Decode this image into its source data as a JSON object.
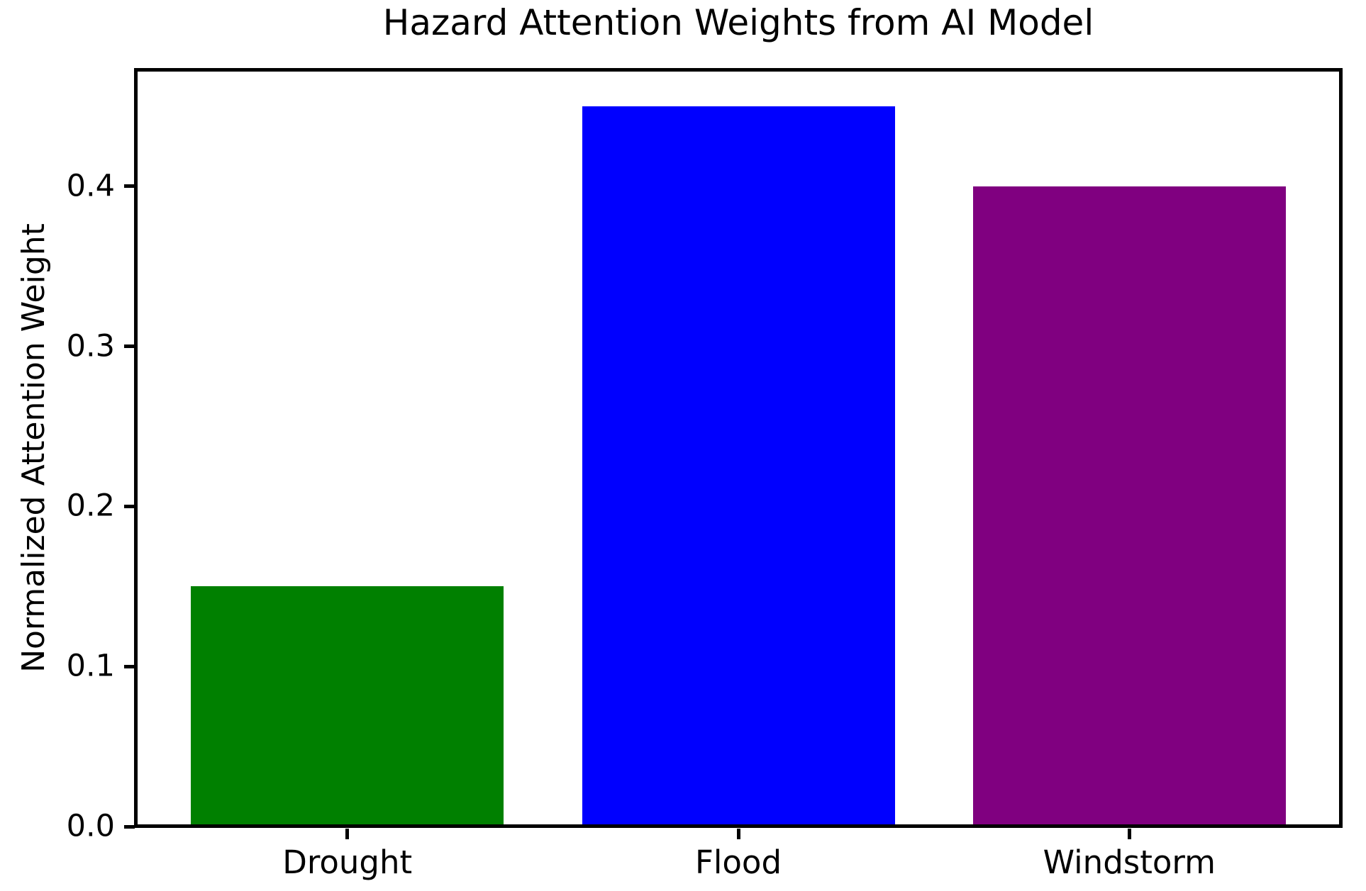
{
  "chart_data": {
    "type": "bar",
    "title": "Hazard Attention Weights from AI Model",
    "xlabel": "",
    "ylabel": "Normalized Attention Weight",
    "categories": [
      "Drought",
      "Flood",
      "Windstorm"
    ],
    "values": [
      0.15,
      0.45,
      0.4
    ],
    "bar_colors": [
      "#008000",
      "#0000ff",
      "#800080"
    ],
    "ytick_labels": [
      "0.0",
      "0.1",
      "0.2",
      "0.3",
      "0.4"
    ],
    "ylim": [
      0,
      0.4725
    ],
    "xlim": [
      -0.54,
      2.54
    ],
    "bar_width": 0.8,
    "grid": false,
    "legend_position": "none",
    "axis_color": "#000000",
    "background_color": "#ffffff"
  }
}
